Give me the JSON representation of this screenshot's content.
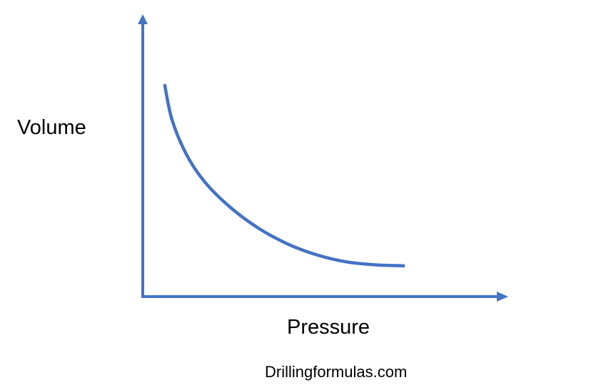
{
  "chart_data": {
    "type": "line",
    "xlabel": "Pressure",
    "ylabel": "Volume",
    "title": "",
    "xlim": [
      0,
      1
    ],
    "ylim": [
      0,
      1
    ],
    "grid": false,
    "legend": "none",
    "series": [
      {
        "x": [
          0.06,
          0.08,
          0.12,
          0.17,
          0.24,
          0.32,
          0.4,
          0.48,
          0.56,
          0.64,
          0.72
        ],
        "values": [
          1.0,
          0.82,
          0.64,
          0.5,
          0.37,
          0.26,
          0.18,
          0.125,
          0.09,
          0.075,
          0.07
        ]
      }
    ],
    "colors": {
      "axis": "#4472c4",
      "curve": "#4472c4"
    }
  },
  "footer": {
    "watermark": "Drillingformulas.com"
  }
}
